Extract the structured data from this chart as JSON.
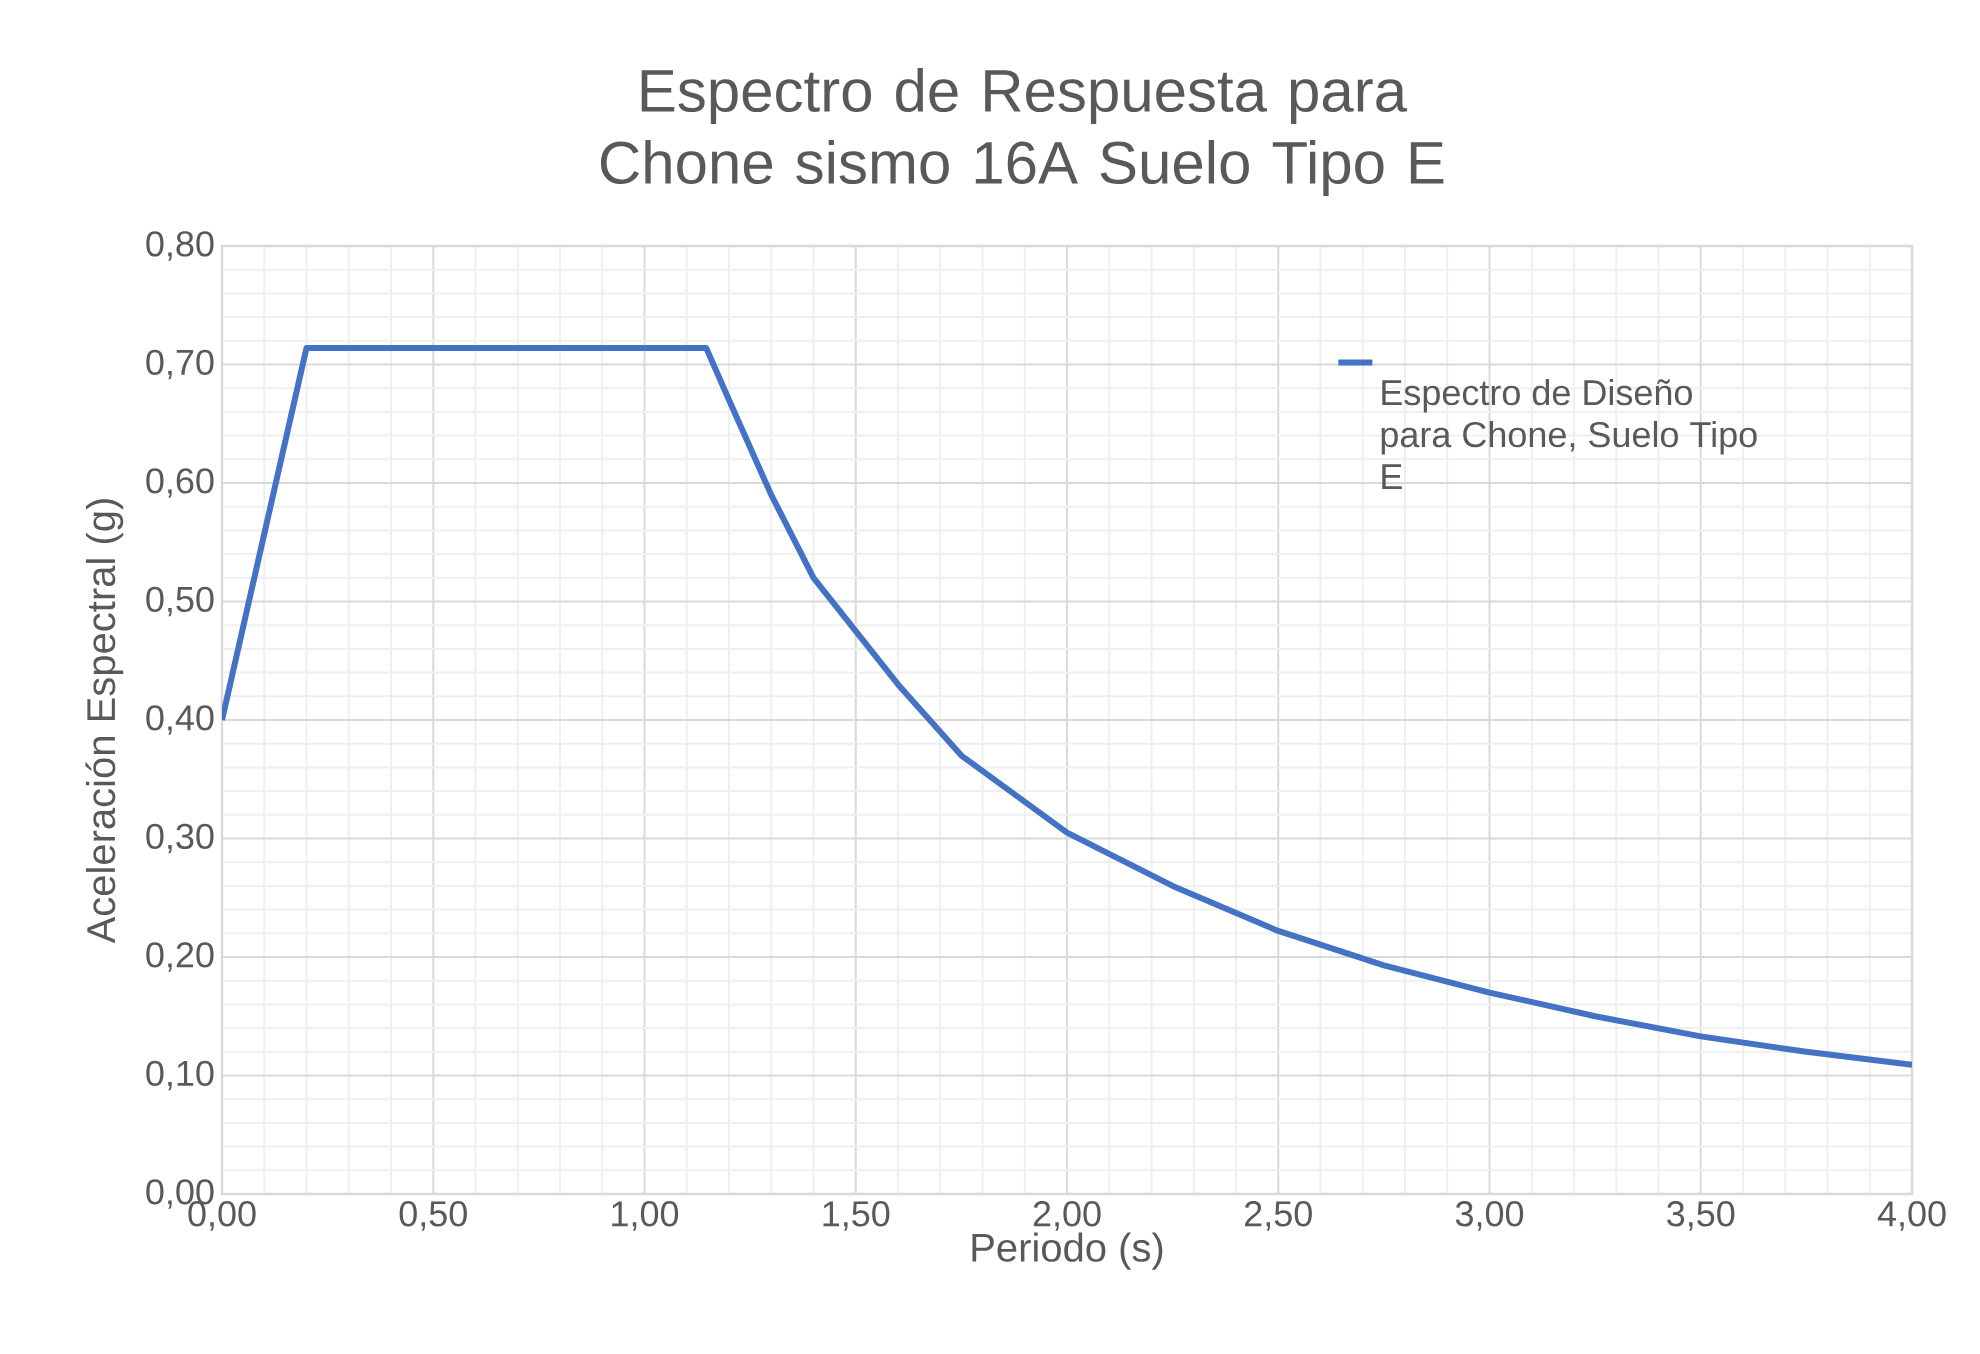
{
  "chart_data": {
    "type": "line",
    "title": "Espectro de Respuesta para Chone sismo 16A Suelo Tipo E",
    "xlabel": "Periodo (s)",
    "ylabel": "Aceleración Espectral (g)",
    "series": [
      {
        "name": "Espectro de Diseño para Chone, Suelo Tipo E",
        "color": "#4472c4",
        "x": [
          0,
          0.2,
          1.146,
          1.2,
          1.3,
          1.4,
          1.5,
          1.6,
          1.75,
          2.0,
          2.25,
          2.5,
          2.75,
          3.0,
          3.25,
          3.5,
          3.75,
          4.0
        ],
        "values": [
          0.4,
          0.714,
          0.714,
          0.67,
          0.59,
          0.52,
          0.475,
          0.43,
          0.37,
          0.305,
          0.26,
          0.222,
          0.193,
          0.17,
          0.15,
          0.133,
          0.12,
          0.109
        ]
      }
    ],
    "xlim": [
      0,
      4
    ],
    "ylim": [
      0,
      0.8
    ],
    "xticks": [
      {
        "value": 0,
        "label": "0,00"
      },
      {
        "value": 0.5,
        "label": "0,50"
      },
      {
        "value": 1,
        "label": "1,00"
      },
      {
        "value": 1.5,
        "label": "1,50"
      },
      {
        "value": 2,
        "label": "2,00"
      },
      {
        "value": 2.5,
        "label": "2,50"
      },
      {
        "value": 3,
        "label": "3,00"
      },
      {
        "value": 3.5,
        "label": "3,50"
      },
      {
        "value": 4,
        "label": "4,00"
      }
    ],
    "yticks": [
      {
        "value": 0,
        "label": "0,00"
      },
      {
        "value": 0.1,
        "label": "0,10"
      },
      {
        "value": 0.2,
        "label": "0,20"
      },
      {
        "value": 0.3,
        "label": "0,30"
      },
      {
        "value": 0.4,
        "label": "0,40"
      },
      {
        "value": 0.5,
        "label": "0,50"
      },
      {
        "value": 0.6,
        "label": "0,60"
      },
      {
        "value": 0.7,
        "label": "0,70"
      },
      {
        "value": 0.8,
        "label": "0,80"
      }
    ],
    "grid": true,
    "legend": "right",
    "marker": "none",
    "line_style": "solid"
  }
}
